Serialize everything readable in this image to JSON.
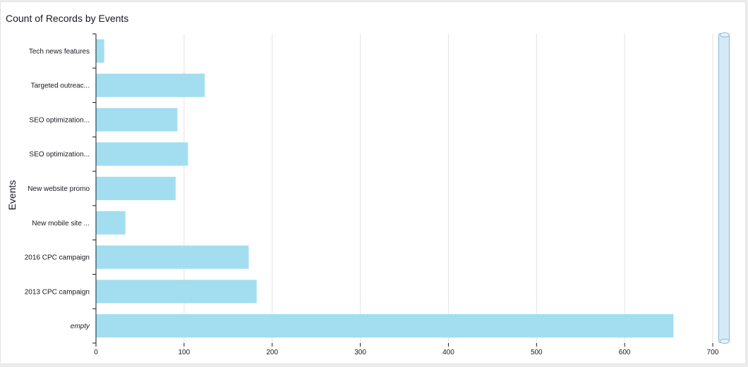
{
  "title": "Count of Records by Events",
  "colors": {
    "bar": "#a2def0",
    "grid": "#e3e3e3",
    "axis": "#16191f"
  },
  "chart_data": {
    "type": "bar",
    "orientation": "horizontal",
    "title": "Count of Records by Events",
    "ylabel": "Events",
    "xlabel": "",
    "categories": [
      "Tech news features",
      "Targeted outreac...",
      "SEO optimization...",
      "SEO optimization...",
      "New website promo",
      "New mobile site ...",
      "2016 CPC campaign",
      "2013 CPC campaign",
      "empty"
    ],
    "values": [
      9,
      123,
      92,
      104,
      90,
      33,
      173,
      182,
      655
    ],
    "xlim": [
      0,
      700
    ],
    "xticks": [
      0,
      100,
      200,
      300,
      400,
      500,
      600,
      700
    ],
    "grid": true
  }
}
